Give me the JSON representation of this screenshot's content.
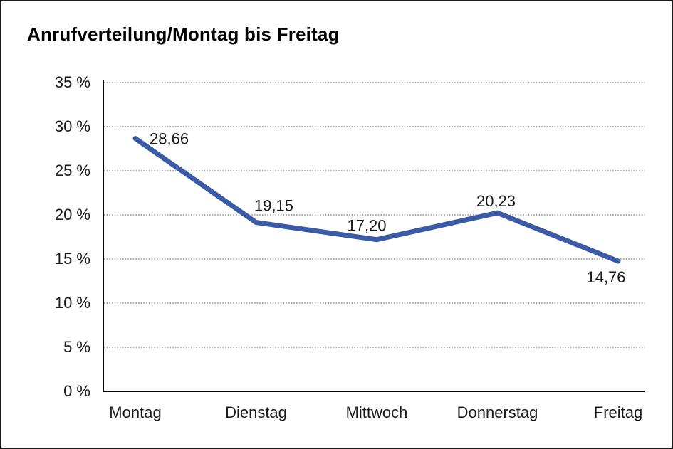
{
  "page": {
    "title": "Anrufverteilung/Montag bis Freitag"
  },
  "chart_data": {
    "type": "line",
    "title": "Anrufverteilung/Montag bis Freitag",
    "categories": [
      "Montag",
      "Dienstag",
      "Mittwoch",
      "Donnerstag",
      "Freitag"
    ],
    "values": [
      28.66,
      19.15,
      17.2,
      20.23,
      14.76
    ],
    "point_labels": [
      "28,66",
      "19,15",
      "17,20",
      "20,23",
      "14,76"
    ],
    "series": [
      {
        "name": "Anrufverteilung",
        "values": [
          28.66,
          19.15,
          17.2,
          20.23,
          14.76
        ]
      }
    ],
    "xlabel": "",
    "ylabel": "",
    "ylim": [
      0,
      35
    ],
    "ytick_step": 5,
    "ytick_labels": [
      "0 %",
      "5 %",
      "10 %",
      "15 %",
      "20 %",
      "25 %",
      "30 %",
      "35 %"
    ],
    "grid": "horizontal-dotted",
    "legend": "none",
    "colors": {
      "series_line": "#3b5ba7",
      "grid_line": "#6e6e6e",
      "axis_line": "#000000",
      "label_text": "#1a1a1a"
    }
  }
}
